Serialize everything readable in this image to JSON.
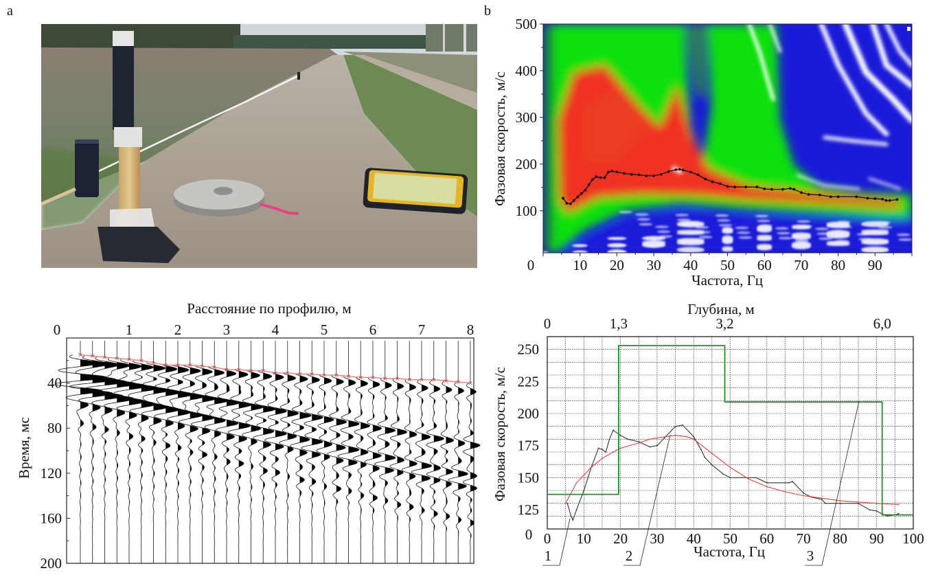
{
  "panel_labels": {
    "a": "a",
    "b": "b"
  },
  "chart_data": [
    {
      "type": "heatmap",
      "title": "",
      "xlabel": "Частота, Гц",
      "ylabel": "Фазовая скорость, м/с",
      "xlim": [
        0,
        100
      ],
      "ylim": [
        10,
        500
      ],
      "xticks": [
        0,
        10,
        20,
        30,
        40,
        50,
        60,
        70,
        80,
        90
      ],
      "yticks": [
        100,
        200,
        300,
        400,
        500
      ],
      "colormap": [
        "#ffffff",
        "#1a1ad8",
        "#10e010",
        "#f03020"
      ],
      "picked_curve": {
        "color": "#111111",
        "x": [
          5.4,
          6.4,
          7.4,
          8.3,
          9.4,
          10.4,
          11.4,
          12.4,
          13.4,
          14.4,
          15.5,
          16.7,
          17.7,
          18.7,
          20,
          22,
          24,
          26,
          28,
          30,
          32,
          34,
          36,
          37,
          38,
          40,
          42,
          44,
          46,
          48,
          50,
          52,
          55,
          58,
          60,
          62,
          65,
          67,
          68,
          70,
          72,
          75,
          78,
          80,
          85,
          88,
          90,
          92,
          93,
          94,
          96
        ],
        "y": [
          127,
          116,
          115,
          122,
          130,
          137,
          144,
          156,
          167,
          173,
          171,
          171,
          183,
          185,
          183,
          180,
          178,
          177,
          175,
          175,
          178,
          184,
          188,
          189,
          187,
          183,
          177,
          168,
          162,
          158,
          152,
          151,
          151,
          151,
          147,
          146,
          146,
          148,
          146,
          139,
          135,
          134,
          130,
          130,
          130,
          127,
          126,
          125,
          122,
          122,
          124
        ]
      }
    },
    {
      "type": "line",
      "title": "",
      "xlabel": "Расстояние по профилю, м",
      "ylabel": "Время, мс",
      "xlim": [
        0,
        8
      ],
      "ylim": [
        200,
        0
      ],
      "xticks": [
        "0",
        "1",
        "2",
        "3",
        "4",
        "5",
        "6",
        "7",
        "8"
      ],
      "yticks": [
        "40",
        "80",
        "120",
        "160",
        "200"
      ],
      "corner_label": "0",
      "trace_spacing_m": 0.25,
      "first_breaks": {
        "color": "#d04040",
        "x": [
          0,
          0.25,
          0.5,
          0.75,
          1,
          1.25,
          1.5,
          1.75,
          2,
          2.25,
          2.5,
          2.75,
          3,
          3.25,
          3.5,
          3.75,
          4,
          4.25,
          4.5,
          4.75,
          5,
          5.25,
          5.5,
          5.75,
          6,
          6.25,
          6.5,
          6.75,
          7,
          7.25,
          7.5,
          7.75,
          8
        ],
        "y": [
          15,
          16,
          17,
          18,
          19,
          20,
          22,
          24,
          24,
          24,
          25,
          26,
          28,
          28,
          29,
          29,
          31,
          31,
          32,
          32,
          33,
          33,
          34,
          35,
          35,
          36,
          36,
          37,
          37,
          37,
          38,
          39,
          40
        ]
      }
    },
    {
      "type": "line",
      "title": "",
      "xlabel": "Частота, Гц",
      "ylabel": "Фазовая скорость, м/с",
      "xlim": [
        0,
        100
      ],
      "ylim": [
        110,
        260
      ],
      "xticks": [
        "0",
        "10",
        "20",
        "30",
        "40",
        "50",
        "60",
        "70",
        "80",
        "90",
        "100"
      ],
      "yticks": [
        "125",
        "150",
        "175",
        "200",
        "225",
        "250"
      ],
      "corner_label": "0",
      "grid": true,
      "top_axis": {
        "label": "Глубина, м",
        "ticks": [
          {
            "x": 0,
            "label": "0"
          },
          {
            "x": 19.5,
            "label": "1,3"
          },
          {
            "x": 48.5,
            "label": "3,2"
          },
          {
            "x": 91.5,
            "label": "6,0"
          }
        ]
      },
      "series": [
        {
          "label": "1",
          "color": "#333333",
          "x": [
            5.5,
            6.5,
            7,
            8,
            10,
            12,
            14,
            15,
            16,
            17,
            18,
            20,
            22,
            25,
            28,
            30,
            32,
            35,
            37,
            40,
            42,
            43,
            45,
            48,
            50,
            57,
            60,
            66,
            67,
            70,
            72,
            75,
            76,
            80,
            85,
            88,
            90,
            92,
            93,
            95,
            96
          ],
          "y": [
            130,
            120,
            117,
            125,
            140,
            158,
            173,
            172,
            170,
            180,
            187,
            183,
            180,
            178,
            174,
            175,
            181,
            190,
            191,
            182,
            172,
            166,
            160,
            153,
            150,
            150,
            146,
            146,
            147,
            138,
            135,
            133,
            130,
            130,
            130,
            125,
            124,
            121,
            120,
            121,
            122
          ]
        },
        {
          "label": "2",
          "color": "#e04040",
          "x": [
            5,
            8,
            10,
            12,
            15,
            18,
            20,
            25,
            28,
            30,
            35,
            38,
            40,
            45,
            50,
            55,
            60,
            65,
            70,
            75,
            80,
            90,
            96
          ],
          "y": [
            130,
            146,
            152,
            158,
            165,
            170,
            173,
            177,
            180,
            181,
            183,
            182,
            180,
            169,
            158,
            149,
            143,
            139,
            136,
            134,
            132,
            130,
            129
          ]
        },
        {
          "label": "3",
          "color": "#2a8a2a",
          "x": [
            0,
            19.5,
            19.5,
            48.5,
            48.5,
            91.5,
            91.5,
            100
          ],
          "y": [
            137,
            137,
            253,
            253,
            209,
            209,
            121,
            121
          ]
        }
      ]
    }
  ]
}
